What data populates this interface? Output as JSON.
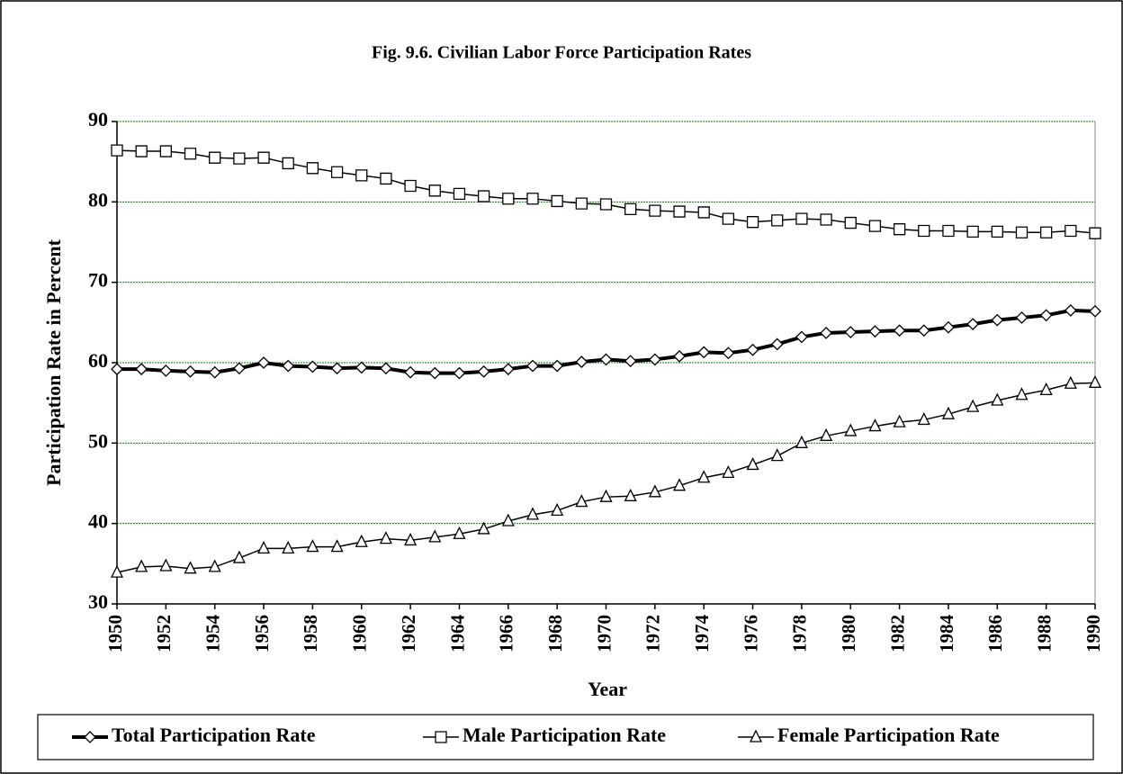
{
  "chart_data": {
    "type": "line",
    "title": "Fig. 9.6. Civilian Labor Force Participation Rates",
    "xlabel": "Year",
    "ylabel": "Participation Rate in Percent",
    "x": [
      1950,
      1951,
      1952,
      1953,
      1954,
      1955,
      1956,
      1957,
      1958,
      1959,
      1960,
      1961,
      1962,
      1963,
      1964,
      1965,
      1966,
      1967,
      1968,
      1969,
      1970,
      1971,
      1972,
      1973,
      1974,
      1975,
      1976,
      1977,
      1978,
      1979,
      1980,
      1981,
      1982,
      1983,
      1984,
      1985,
      1986,
      1987,
      1988,
      1989,
      1990
    ],
    "xlim": [
      1950,
      1990
    ],
    "xticks": [
      1950,
      1952,
      1954,
      1956,
      1958,
      1960,
      1962,
      1964,
      1966,
      1968,
      1970,
      1972,
      1974,
      1976,
      1978,
      1980,
      1982,
      1984,
      1986,
      1988,
      1990
    ],
    "ylim": [
      30,
      90
    ],
    "yticks": [
      30,
      40,
      50,
      60,
      70,
      80,
      90
    ],
    "grid": true,
    "grid_color": "#008000",
    "legend": "bottom",
    "series": [
      {
        "name": "Total Participation Rate",
        "color": "#000000",
        "marker": "diamond",
        "line_width": 4,
        "values": [
          59.2,
          59.2,
          59.0,
          58.9,
          58.8,
          59.3,
          60.0,
          59.6,
          59.5,
          59.3,
          59.4,
          59.3,
          58.8,
          58.7,
          58.7,
          58.9,
          59.2,
          59.6,
          59.6,
          60.1,
          60.4,
          60.2,
          60.4,
          60.8,
          61.3,
          61.2,
          61.6,
          62.3,
          63.2,
          63.7,
          63.8,
          63.9,
          64.0,
          64.0,
          64.4,
          64.8,
          65.3,
          65.6,
          65.9,
          66.5,
          66.4
        ]
      },
      {
        "name": "Male Participation Rate",
        "color": "#000000",
        "marker": "square",
        "line_width": 1.5,
        "values": [
          86.4,
          86.3,
          86.3,
          86.0,
          85.5,
          85.4,
          85.5,
          84.8,
          84.2,
          83.7,
          83.3,
          82.9,
          82.0,
          81.4,
          81.0,
          80.7,
          80.4,
          80.4,
          80.1,
          79.8,
          79.7,
          79.1,
          78.9,
          78.8,
          78.7,
          77.9,
          77.5,
          77.7,
          77.9,
          77.8,
          77.4,
          77.0,
          76.6,
          76.4,
          76.4,
          76.3,
          76.3,
          76.2,
          76.2,
          76.4,
          76.1
        ]
      },
      {
        "name": "Female Participation Rate",
        "color": "#000000",
        "marker": "triangle",
        "line_width": 1.5,
        "values": [
          33.9,
          34.6,
          34.7,
          34.4,
          34.6,
          35.7,
          36.9,
          36.9,
          37.1,
          37.1,
          37.7,
          38.1,
          37.9,
          38.3,
          38.7,
          39.3,
          40.3,
          41.1,
          41.6,
          42.7,
          43.3,
          43.4,
          43.9,
          44.7,
          45.7,
          46.3,
          47.3,
          48.4,
          50.0,
          50.9,
          51.5,
          52.1,
          52.6,
          52.9,
          53.6,
          54.5,
          55.3,
          56.0,
          56.6,
          57.4,
          57.5
        ]
      }
    ]
  }
}
